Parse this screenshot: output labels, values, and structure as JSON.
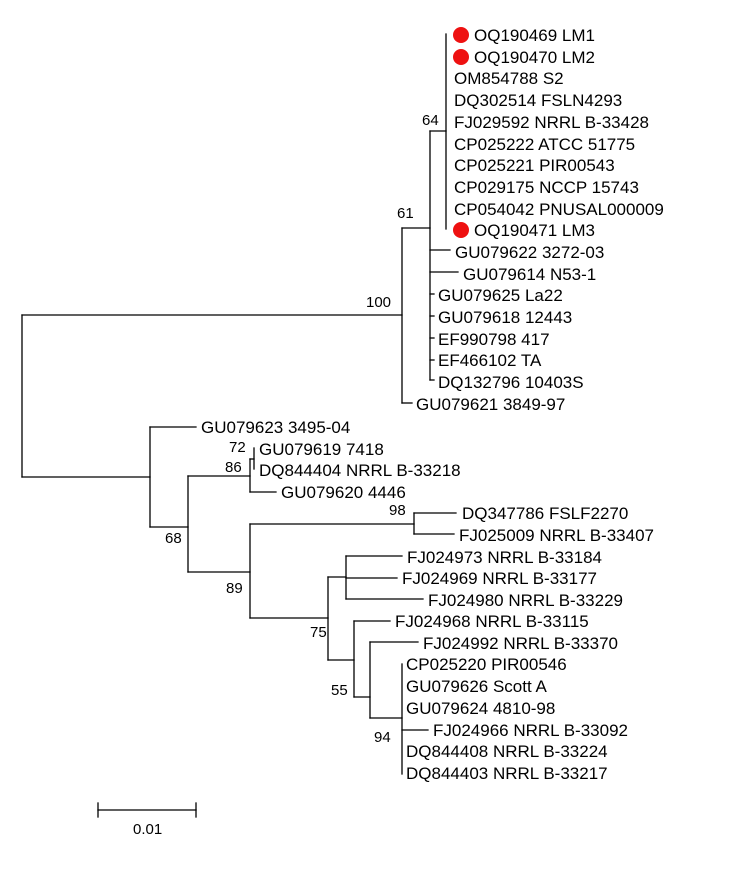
{
  "marker_color": "#ee1111",
  "tree": {
    "taxa": [
      {
        "label": "OQ190469 LM1",
        "highlighted": true
      },
      {
        "label": "OQ190470 LM2",
        "highlighted": true
      },
      {
        "label": "OM854788 S2",
        "highlighted": false
      },
      {
        "label": "DQ302514 FSLN4293",
        "highlighted": false
      },
      {
        "label": "FJ029592 NRRL B-33428",
        "highlighted": false
      },
      {
        "label": "CP025222 ATCC 51775",
        "highlighted": false
      },
      {
        "label": "CP025221 PIR00543",
        "highlighted": false
      },
      {
        "label": "CP029175 NCCP 15743",
        "highlighted": false
      },
      {
        "label": "CP054042 PNUSAL000009",
        "highlighted": false
      },
      {
        "label": "OQ190471 LM3",
        "highlighted": true
      },
      {
        "label": "GU079622 3272-03",
        "highlighted": false
      },
      {
        "label": "GU079614 N53-1",
        "highlighted": false
      },
      {
        "label": "GU079625 La22",
        "highlighted": false
      },
      {
        "label": "GU079618 12443",
        "highlighted": false
      },
      {
        "label": "EF990798 417",
        "highlighted": false
      },
      {
        "label": "EF466102 TA",
        "highlighted": false
      },
      {
        "label": "DQ132796 10403S",
        "highlighted": false
      },
      {
        "label": "GU079621 3849-97",
        "highlighted": false
      },
      {
        "label": "GU079623 3495-04",
        "highlighted": false
      },
      {
        "label": "GU079619 7418",
        "highlighted": false
      },
      {
        "label": "DQ844404 NRRL B-33218",
        "highlighted": false
      },
      {
        "label": "GU079620 4446",
        "highlighted": false
      },
      {
        "label": "DQ347786 FSLF2270",
        "highlighted": false
      },
      {
        "label": "FJ025009 NRRL B-33407",
        "highlighted": false
      },
      {
        "label": "FJ024973 NRRL B-33184",
        "highlighted": false
      },
      {
        "label": "FJ024969 NRRL B-33177",
        "highlighted": false
      },
      {
        "label": "FJ024980 NRRL B-33229",
        "highlighted": false
      },
      {
        "label": "FJ024968 NRRL B-33115",
        "highlighted": false
      },
      {
        "label": "FJ024992 NRRL B-33370",
        "highlighted": false
      },
      {
        "label": "CP025220 PIR00546",
        "highlighted": false
      },
      {
        "label": "GU079626 Scott A",
        "highlighted": false
      },
      {
        "label": "GU079624 4810-98",
        "highlighted": false
      },
      {
        "label": "FJ024966 NRRL B-33092",
        "highlighted": false
      },
      {
        "label": "DQ844408 NRRL B-33224",
        "highlighted": false
      },
      {
        "label": "DQ844403 NRRL B-33217",
        "highlighted": false
      }
    ],
    "bootstrap_values": [
      "64",
      "61",
      "100",
      "72",
      "86",
      "98",
      "68",
      "89",
      "75",
      "55",
      "94"
    ],
    "scale_bar_label": "0.01"
  }
}
